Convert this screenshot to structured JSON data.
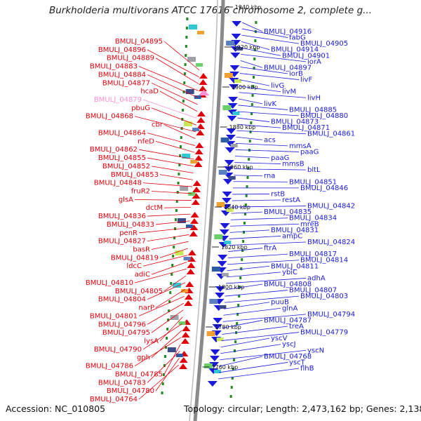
{
  "title": "Burkholderia multivorans ATCC 17616 chromosome 2, complete g...",
  "footer": {
    "accession": "Accession: NC_010805",
    "topology": "Topology: circular; Length: 2,473,162 bp; Genes: 2,138"
  },
  "colors": {
    "forward_strand": "#e0000a",
    "reverse_strand": "#1a1adc",
    "highlight": "#ff8fd6",
    "backbone": "#8a8a8a",
    "tick_marker": "#1f8a1f"
  },
  "kbp_markers": [
    "1940 kbp",
    "1920 kbp",
    "1900 kbp",
    "1880 kbp",
    "1860 kbp",
    "1840 kbp",
    "1820 kbp",
    "1800 kbp",
    "1780 kbp",
    "1760 kbp"
  ],
  "left_labels": [
    "BMULJ_04895",
    "BMULJ_04896",
    "BMULJ_04889",
    "BMULJ_04883",
    "BMULJ_04884",
    "BMULJ_04877",
    "hcaD",
    "BMULJ_04879",
    "pbuG",
    "BMULJ_04868",
    "cbr",
    "BMULJ_04864",
    "nfeD",
    "BMULJ_04862",
    "BMULJ_04855",
    "BMULJ_04852",
    "BMULJ_04853",
    "BMULJ_04848",
    "fruR2",
    "glsA",
    "dctM",
    "BMULJ_04836",
    "BMULJ_04833",
    "penR",
    "BMULJ_04827",
    "basR",
    "BMULJ_04819",
    "ldcC",
    "adiC",
    "BMULJ_04810",
    "BMULJ_04805",
    "BMULJ_04804",
    "narP",
    "BMULJ_04801",
    "BMULJ_04796",
    "BMULJ_04795",
    "lysA",
    "BMULJ_04790",
    "gph",
    "BMULJ_04786",
    "BMULJ_04785",
    "BMULJ_04783",
    "BMULJ_04780",
    "BMULJ_04764"
  ],
  "right_labels": [
    "BMULJ_04916",
    "fabG",
    "BMULJ_04905",
    "BMULJ_04914",
    "BMULJ_04901",
    "iorA",
    "BMULJ_04897",
    "iorB",
    "livF",
    "livG",
    "livM",
    "livH",
    "livK",
    "BMULJ_04885",
    "BMULJ_04880",
    "BMULJ_04873",
    "BMULJ_04871",
    "BMULJ_04861",
    "acs",
    "mmsA",
    "paaG",
    "paaG",
    "mmsB",
    "bltL",
    "rna",
    "BMULJ_04851",
    "BMULJ_04846",
    "rstB",
    "restA",
    "BMULJ_04842",
    "BMULJ_04835",
    "BMULJ_04834",
    "mreB",
    "BMULJ_04831",
    "ampC",
    "BMULJ_04824",
    "ftrA",
    "BMULJ_04817",
    "BMULJ_04814",
    "BMULJ_04811",
    "ybiC",
    "adhA",
    "BMULJ_04808",
    "BMULJ_04807",
    "BMULJ_04803",
    "puuB",
    "glnA",
    "BMULJ_04794",
    "BMULJ_04787",
    "treA",
    "BMULJ_04779",
    "yscV",
    "yscJ",
    "yscN",
    "BMULJ_04768",
    "yscT",
    "flhB"
  ]
}
